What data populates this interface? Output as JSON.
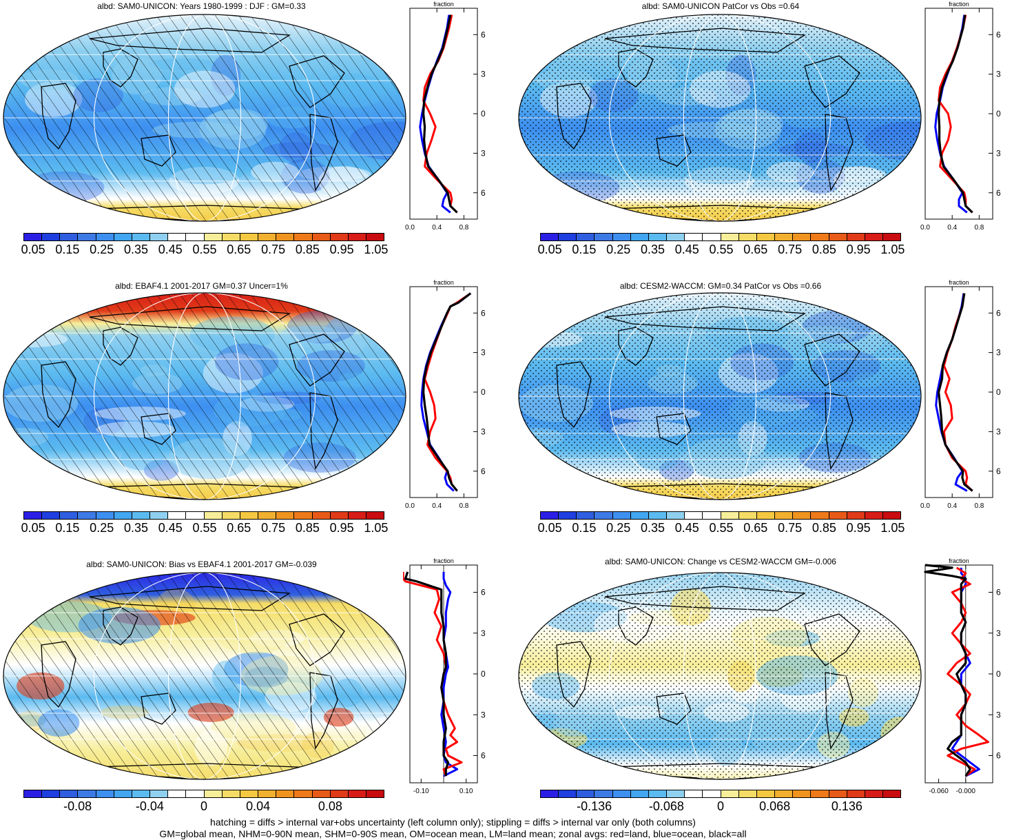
{
  "panels": [
    {
      "title": "albd: SAM0-UNICON: Years 1980-1999 : DJF : GM=0.33",
      "pattern": "hatch",
      "palette": "abs"
    },
    {
      "title": "albd: SAM0-UNICON PatCor vs Obs =0.64",
      "pattern": "stipple",
      "palette": "abs"
    },
    {
      "title": "albd: EBAF4.1 2001-2017 GM=0.37 Uncer=1%",
      "pattern": "hatch",
      "palette": "abs"
    },
    {
      "title": "albd: CESM2-WACCM: GM=0.34 PatCor vs Obs =0.66",
      "pattern": "stipple",
      "palette": "abs"
    },
    {
      "title": "albd: SAM0-UNICON: Bias vs EBAF4.1 2001-2017 GM=-0.039",
      "pattern": "hatch",
      "palette": "diff"
    },
    {
      "title": "albd: SAM0-UNICON: Change vs CESM2-WACCM GM=-0.006",
      "pattern": "stipple",
      "palette": "diff"
    }
  ],
  "colorbars": {
    "abs_colors": [
      "#2b1fe6",
      "#1f3fe0",
      "#2f5fe0",
      "#3d7ae6",
      "#3d8ff0",
      "#42a6f0",
      "#5bbaf0",
      "#8fd0f0",
      "#ffffff",
      "#ffffff",
      "#f7ee9a",
      "#f5dc66",
      "#f5c842",
      "#f2b030",
      "#f09420",
      "#ee7a1a",
      "#e85a18",
      "#e03a18",
      "#d81c18",
      "#c80c10"
    ],
    "abs_labels": [
      "0.05",
      "0.15",
      "0.25",
      "0.35",
      "0.45",
      "0.55",
      "0.65",
      "0.75",
      "0.85",
      "0.95",
      "1.05"
    ],
    "diff_colors": [
      "#2b1fe6",
      "#1f3fe0",
      "#2f5fe0",
      "#3d7ae6",
      "#3d8ff0",
      "#42a6f0",
      "#5bbaf0",
      "#8fd0f0",
      "#ffffff",
      "#ffffff",
      "#f7ee9a",
      "#f5dc66",
      "#f5c842",
      "#f2b030",
      "#f09420",
      "#ee7a1a",
      "#e85a18",
      "#e03a18",
      "#d81c18",
      "#c80c10"
    ],
    "left_diff_labels": [
      "-0.08",
      "-0.04",
      "0",
      "0.04",
      "0.08"
    ],
    "right_diff_labels": [
      "-0.136",
      "-0.068",
      "0",
      "0.068",
      "0.136"
    ]
  },
  "chart_data": [
    {
      "type": "line",
      "title": "fraction",
      "xlim": [
        0,
        1
      ],
      "x_ticks": [
        "0.0",
        "0.4",
        "0.8"
      ],
      "y_ticks": [
        "60N",
        "30N",
        "0",
        "30S",
        "60S"
      ],
      "series": [
        {
          "name": "land",
          "color": "#ff0000",
          "lat": [
            75,
            65,
            50,
            40,
            30,
            20,
            10,
            0,
            -10,
            -20,
            -30,
            -40,
            -50,
            -60,
            -65,
            -70,
            -75
          ],
          "values": [
            0.62,
            0.58,
            0.5,
            0.42,
            0.3,
            0.22,
            0.2,
            0.3,
            0.38,
            0.32,
            0.25,
            0.22,
            0.4,
            0.6,
            0.62,
            0.6,
            0.7
          ]
        },
        {
          "name": "ocean",
          "color": "#0000ff",
          "lat": [
            75,
            65,
            50,
            40,
            30,
            20,
            10,
            0,
            -10,
            -20,
            -30,
            -40,
            -50,
            -60,
            -65,
            -70,
            -75
          ],
          "values": [
            0.58,
            0.55,
            0.48,
            0.4,
            0.33,
            0.27,
            0.22,
            0.18,
            0.15,
            0.18,
            0.22,
            0.28,
            0.42,
            0.55,
            0.5,
            0.48,
            0.6
          ]
        },
        {
          "name": "all",
          "color": "#000000",
          "lat": [
            75,
            65,
            50,
            40,
            30,
            20,
            10,
            0,
            -10,
            -20,
            -30,
            -40,
            -50,
            -60,
            -65,
            -70,
            -75
          ],
          "values": [
            0.6,
            0.56,
            0.49,
            0.41,
            0.32,
            0.26,
            0.21,
            0.2,
            0.22,
            0.21,
            0.23,
            0.27,
            0.42,
            0.56,
            0.58,
            0.6,
            0.7
          ]
        }
      ]
    },
    {
      "type": "line",
      "title": "fraction",
      "xlim": [
        0,
        1
      ],
      "x_ticks": [
        "0.0",
        "0.4",
        "0.8"
      ],
      "y_ticks": [
        "60N",
        "30N",
        "0",
        "30S",
        "60S"
      ],
      "series": [
        {
          "name": "land",
          "color": "#ff0000",
          "lat": [
            75,
            65,
            50,
            40,
            30,
            20,
            10,
            0,
            -10,
            -20,
            -30,
            -40,
            -50,
            -60,
            -65,
            -70,
            -75
          ],
          "values": [
            0.6,
            0.56,
            0.47,
            0.4,
            0.3,
            0.22,
            0.2,
            0.34,
            0.38,
            0.34,
            0.25,
            0.22,
            0.4,
            0.58,
            0.6,
            0.6,
            0.7
          ]
        },
        {
          "name": "ocean",
          "color": "#0000ff",
          "lat": [
            75,
            65,
            50,
            40,
            30,
            20,
            10,
            0,
            -10,
            -20,
            -30,
            -40,
            -50,
            -60,
            -65,
            -70,
            -75
          ],
          "values": [
            0.58,
            0.55,
            0.48,
            0.4,
            0.33,
            0.26,
            0.22,
            0.17,
            0.15,
            0.18,
            0.22,
            0.28,
            0.42,
            0.55,
            0.5,
            0.5,
            0.62
          ]
        },
        {
          "name": "all",
          "color": "#000000",
          "lat": [
            75,
            65,
            50,
            40,
            30,
            20,
            10,
            0,
            -10,
            -20,
            -30,
            -40,
            -50,
            -60,
            -65,
            -70,
            -75
          ],
          "values": [
            0.59,
            0.56,
            0.48,
            0.41,
            0.32,
            0.25,
            0.21,
            0.2,
            0.21,
            0.21,
            0.23,
            0.27,
            0.42,
            0.56,
            0.58,
            0.6,
            0.7
          ]
        }
      ]
    },
    {
      "type": "line",
      "title": "fraction",
      "xlim": [
        0,
        1
      ],
      "x_ticks": [
        "0.0",
        "0.4",
        "0.8"
      ],
      "y_ticks": [
        "60N",
        "30N",
        "0",
        "30S",
        "60S"
      ],
      "series": [
        {
          "name": "land",
          "color": "#ff0000",
          "lat": [
            75,
            68,
            65,
            60,
            50,
            40,
            30,
            20,
            10,
            0,
            -10,
            -20,
            -30,
            -40,
            -50,
            -60,
            -65,
            -70,
            -75
          ],
          "values": [
            0.9,
            0.7,
            0.6,
            0.56,
            0.47,
            0.4,
            0.33,
            0.27,
            0.22,
            0.3,
            0.36,
            0.38,
            0.3,
            0.26,
            0.38,
            0.55,
            0.6,
            0.62,
            0.7
          ]
        },
        {
          "name": "ocean",
          "color": "#0000ff",
          "lat": [
            75,
            68,
            65,
            60,
            50,
            40,
            30,
            20,
            10,
            0,
            -10,
            -20,
            -30,
            -40,
            -50,
            -60,
            -65,
            -70,
            -75
          ],
          "values": [
            0.9,
            0.72,
            0.6,
            0.55,
            0.46,
            0.38,
            0.3,
            0.24,
            0.2,
            0.18,
            0.17,
            0.2,
            0.25,
            0.3,
            0.43,
            0.55,
            0.52,
            0.55,
            0.65
          ]
        },
        {
          "name": "all",
          "color": "#000000",
          "lat": [
            75,
            68,
            65,
            60,
            50,
            40,
            30,
            20,
            10,
            0,
            -10,
            -20,
            -30,
            -40,
            -50,
            -60,
            -65,
            -70,
            -75
          ],
          "values": [
            0.9,
            0.72,
            0.6,
            0.55,
            0.47,
            0.39,
            0.31,
            0.25,
            0.21,
            0.2,
            0.22,
            0.25,
            0.27,
            0.29,
            0.42,
            0.56,
            0.58,
            0.62,
            0.7
          ]
        }
      ]
    },
    {
      "type": "line",
      "title": "fraction",
      "xlim": [
        0,
        1
      ],
      "x_ticks": [
        "0.0",
        "0.4",
        "0.8"
      ],
      "y_ticks": [
        "60N",
        "30N",
        "0",
        "30S",
        "60S"
      ],
      "series": [
        {
          "name": "land",
          "color": "#ff0000",
          "lat": [
            75,
            65,
            50,
            40,
            30,
            20,
            10,
            0,
            -10,
            -20,
            -30,
            -40,
            -50,
            -60,
            -65,
            -70,
            -75
          ],
          "values": [
            0.58,
            0.55,
            0.45,
            0.4,
            0.33,
            0.28,
            0.36,
            0.3,
            0.38,
            0.4,
            0.28,
            0.3,
            0.4,
            0.6,
            0.62,
            0.6,
            0.7
          ]
        },
        {
          "name": "ocean",
          "color": "#0000ff",
          "lat": [
            75,
            65,
            50,
            40,
            30,
            20,
            10,
            0,
            -10,
            -20,
            -30,
            -40,
            -50,
            -60,
            -65,
            -70,
            -75
          ],
          "values": [
            0.57,
            0.54,
            0.46,
            0.4,
            0.32,
            0.26,
            0.22,
            0.18,
            0.16,
            0.2,
            0.24,
            0.3,
            0.43,
            0.55,
            0.48,
            0.45,
            0.62
          ]
        },
        {
          "name": "all",
          "color": "#000000",
          "lat": [
            75,
            65,
            50,
            40,
            30,
            20,
            10,
            0,
            -10,
            -20,
            -30,
            -40,
            -50,
            -60,
            -65,
            -70,
            -75
          ],
          "values": [
            0.58,
            0.55,
            0.46,
            0.4,
            0.32,
            0.26,
            0.25,
            0.2,
            0.22,
            0.24,
            0.25,
            0.3,
            0.42,
            0.56,
            0.55,
            0.58,
            0.7
          ]
        }
      ]
    },
    {
      "type": "line",
      "title": "fraction",
      "xlim": [
        -0.15,
        0.15
      ],
      "x_ticks": [
        "-0.10",
        "0.10"
      ],
      "y_ticks": [
        "60N",
        "30N",
        "0",
        "30S",
        "60S"
      ],
      "series": [
        {
          "name": "land",
          "color": "#ff0000",
          "lat": [
            75,
            70,
            68,
            62,
            55,
            45,
            35,
            25,
            15,
            5,
            0,
            -10,
            -20,
            -30,
            -40,
            -45,
            -50,
            -55,
            -60,
            -65,
            -70,
            -75
          ],
          "values": [
            -0.18,
            -0.18,
            -0.17,
            -0.03,
            -0.02,
            -0.04,
            -0.01,
            -0.03,
            0.0,
            0.01,
            0.0,
            -0.01,
            0.0,
            0.02,
            0.05,
            0.03,
            0.06,
            0.01,
            0.02,
            0.08,
            0.0,
            0.01
          ]
        },
        {
          "name": "ocean",
          "color": "#0000ff",
          "lat": [
            75,
            70,
            65,
            60,
            55,
            45,
            35,
            25,
            15,
            5,
            0,
            -10,
            -20,
            -30,
            -40,
            -50,
            -60,
            -65,
            -70,
            -75
          ],
          "values": [
            0.0,
            0.0,
            0.01,
            0.03,
            0.02,
            0.01,
            0.01,
            0.0,
            0.01,
            0.02,
            0.01,
            0.0,
            0.0,
            -0.01,
            0.0,
            0.01,
            0.0,
            0.01,
            0.06,
            0.0
          ]
        },
        {
          "name": "all",
          "color": "#000000",
          "lat": [
            75,
            70,
            68,
            62,
            55,
            45,
            35,
            25,
            15,
            5,
            0,
            -10,
            -20,
            -30,
            -40,
            -50,
            -60,
            -65,
            -70,
            -75
          ],
          "values": [
            -0.16,
            -0.17,
            -0.12,
            -0.01,
            -0.01,
            -0.01,
            0.0,
            0.0,
            0.01,
            0.01,
            0.0,
            -0.01,
            0.0,
            0.0,
            0.01,
            0.0,
            0.0,
            0.02,
            0.01,
            0.01
          ]
        }
      ]
    },
    {
      "type": "line",
      "title": "fraction",
      "xlim": [
        -0.09,
        0.06
      ],
      "x_ticks": [
        "-0.060",
        "-0.000"
      ],
      "y_ticks": [
        "60N",
        "30N",
        "0",
        "30S",
        "60S"
      ],
      "series": [
        {
          "name": "land",
          "color": "#ff0000",
          "lat": [
            78,
            74,
            70,
            66,
            60,
            52,
            45,
            38,
            30,
            22,
            15,
            8,
            0,
            -8,
            -15,
            -22,
            -30,
            -38,
            -45,
            -50,
            -55,
            -60,
            -65,
            -70,
            -75
          ],
          "values": [
            -0.02,
            0.0,
            -0.01,
            0.01,
            -0.03,
            -0.01,
            0.0,
            -0.01,
            -0.03,
            -0.01,
            0.01,
            -0.02,
            -0.04,
            -0.01,
            0.01,
            0.0,
            -0.02,
            0.0,
            0.03,
            0.05,
            -0.01,
            -0.04,
            -0.01,
            0.02,
            0.0
          ]
        },
        {
          "name": "ocean",
          "color": "#0000ff",
          "lat": [
            78,
            74,
            70,
            66,
            60,
            52,
            45,
            38,
            30,
            22,
            15,
            8,
            0,
            -8,
            -15,
            -22,
            -30,
            -38,
            -45,
            -50,
            -55,
            -60,
            -65,
            -70,
            -75
          ],
          "values": [
            -0.01,
            -0.01,
            0.0,
            0.0,
            -0.01,
            -0.01,
            -0.01,
            0.0,
            -0.01,
            -0.01,
            0.0,
            0.01,
            -0.01,
            -0.01,
            0.0,
            0.0,
            -0.01,
            -0.01,
            -0.01,
            -0.02,
            -0.03,
            -0.01,
            0.01,
            0.03,
            0.0
          ]
        },
        {
          "name": "all",
          "color": "#000000",
          "lat": [
            80,
            78,
            75,
            72,
            70,
            66,
            60,
            52,
            45,
            38,
            30,
            22,
            15,
            8,
            0,
            -8,
            -15,
            -22,
            -30,
            -38,
            -45,
            -50,
            -55,
            -60,
            -65,
            -70,
            -75
          ],
          "values": [
            -0.09,
            -0.03,
            -0.09,
            -0.03,
            0.0,
            -0.01,
            -0.01,
            -0.01,
            -0.01,
            0.0,
            -0.01,
            -0.01,
            0.0,
            0.0,
            -0.02,
            -0.01,
            0.0,
            0.0,
            -0.01,
            -0.01,
            -0.01,
            -0.03,
            -0.04,
            -0.02,
            0.0,
            0.01,
            0.0
          ]
        }
      ]
    }
  ],
  "footer": {
    "line1": "hatching = diffs > internal var+obs uncertainty (left column only); stippling = diffs > internal var only (both columns)",
    "line2": "GM=global mean, NHM=0-90N mean, SHM=0-90S mean, OM=ocean mean, LM=land mean; zonal avgs: red=land, blue=ocean, black=all"
  }
}
